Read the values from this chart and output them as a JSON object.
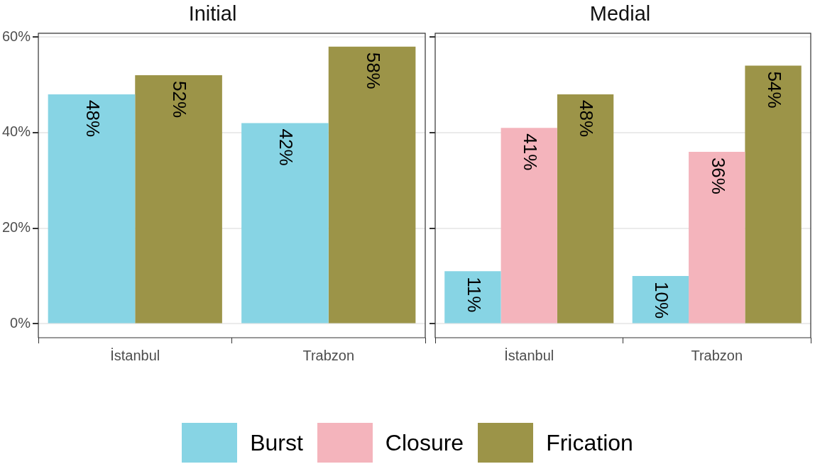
{
  "chart_data": [
    {
      "type": "bar",
      "title": "Initial",
      "categories": [
        "İstanbul",
        "Trabzon"
      ],
      "series": [
        {
          "name": "Burst",
          "color": "#87d4e4",
          "values": [
            48,
            42
          ],
          "value_labels": [
            "48%",
            "42%"
          ]
        },
        {
          "name": "Frication",
          "color": "#9c9448",
          "values": [
            52,
            58
          ],
          "value_labels": [
            "52%",
            "58%"
          ]
        }
      ],
      "ylim": [
        -2.9,
        60.8
      ],
      "yticks": [
        {
          "value": 0,
          "label": "0%"
        },
        {
          "value": 20,
          "label": "20%"
        },
        {
          "value": 40,
          "label": "40%"
        },
        {
          "value": 60,
          "label": "60%"
        }
      ],
      "grid": "y",
      "legend": "bottom"
    },
    {
      "type": "bar",
      "title": "Medial",
      "categories": [
        "İstanbul",
        "Trabzon"
      ],
      "series": [
        {
          "name": "Burst",
          "color": "#87d4e4",
          "values": [
            11,
            10
          ],
          "value_labels": [
            "11%",
            "10%"
          ]
        },
        {
          "name": "Closure",
          "color": "#f4b4bc",
          "values": [
            41,
            36
          ],
          "value_labels": [
            "41%",
            "36%"
          ]
        },
        {
          "name": "Frication",
          "color": "#9c9448",
          "values": [
            48,
            54
          ],
          "value_labels": [
            "48%",
            "54%"
          ]
        }
      ],
      "ylim": [
        -2.9,
        60.8
      ],
      "yticks": [
        0,
        20,
        40,
        60
      ],
      "grid": "y",
      "legend": "bottom",
      "tick_labels": "x"
    }
  ]
}
